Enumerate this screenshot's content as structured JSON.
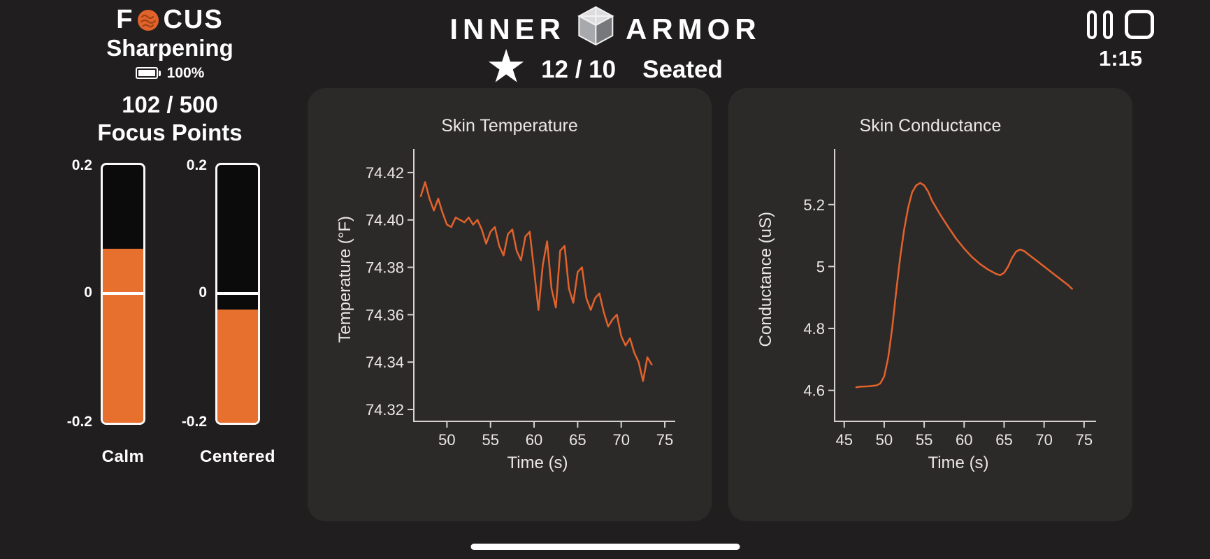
{
  "header": {
    "brand_left": {
      "prefix": "F",
      "suffix": "CUS",
      "subtitle": "Sharpening",
      "battery_percent": "100%"
    },
    "brand_center": {
      "word_left": "INNER",
      "word_right": "ARMOR"
    },
    "score_value": "12 / 10",
    "posture": "Seated",
    "timer": "1:15"
  },
  "focus": {
    "points": "102 / 500",
    "label": "Focus Points"
  },
  "gauges": {
    "scale_top": "0.2",
    "scale_mid": "0",
    "scale_bottom": "-0.2",
    "range": [
      -0.2,
      0.2
    ],
    "items": [
      {
        "label": "Calm",
        "value": 0.07
      },
      {
        "label": "Centered",
        "value": -0.025
      }
    ]
  },
  "icons": {
    "star_glyph": "★",
    "pause": "pause-icon",
    "stop": "stop-icon",
    "battery": "battery-icon",
    "brain": "brain-icon",
    "cube": "cube-logo-icon"
  },
  "colors": {
    "background": "#201e1e",
    "panel": "#2c2a29",
    "bar_orange": "#e8702e",
    "line_orange": "#e2622b",
    "text": "#ffffff",
    "chart_text": "#eae7e4"
  },
  "chart_data": [
    {
      "type": "line",
      "title": "Skin Temperature",
      "xlabel": "Time (s)",
      "ylabel": "Temperature (°F)",
      "xlim": [
        46.2,
        76.2
      ],
      "ylim": [
        74.315,
        74.43
      ],
      "xticks": [
        50,
        55,
        60,
        65,
        70,
        75
      ],
      "yticks": [
        74.32,
        74.34,
        74.36,
        74.38,
        74.4,
        74.42
      ],
      "ytick_labels": [
        "74.32",
        "74.34",
        "74.36",
        "74.38",
        "74.40",
        "74.42"
      ],
      "color": "#e2622b",
      "x": [
        47,
        47.5,
        48,
        48.5,
        49,
        49.5,
        50,
        50.5,
        51,
        51.5,
        52,
        52.5,
        53,
        53.5,
        54,
        54.5,
        55,
        55.5,
        56,
        56.5,
        57,
        57.5,
        58,
        58.5,
        59,
        59.5,
        60,
        60.5,
        61,
        61.5,
        62,
        62.5,
        63,
        63.5,
        64,
        64.5,
        65,
        65.5,
        66,
        66.5,
        67,
        67.5,
        68,
        68.5,
        69,
        69.5,
        70,
        70.5,
        71,
        71.5,
        72,
        72.5,
        73,
        73.5
      ],
      "y": [
        74.41,
        74.416,
        74.409,
        74.404,
        74.409,
        74.403,
        74.398,
        74.397,
        74.401,
        74.4,
        74.399,
        74.401,
        74.398,
        74.4,
        74.396,
        74.39,
        74.395,
        74.397,
        74.389,
        74.385,
        74.394,
        74.396,
        74.387,
        74.383,
        74.393,
        74.395,
        74.379,
        74.362,
        74.381,
        74.391,
        74.371,
        74.363,
        74.387,
        74.389,
        74.371,
        74.365,
        74.378,
        74.38,
        74.367,
        74.362,
        74.367,
        74.369,
        74.361,
        74.355,
        74.358,
        74.36,
        74.351,
        74.347,
        74.35,
        74.344,
        74.34,
        74.332,
        74.342,
        74.339
      ]
    },
    {
      "type": "line",
      "title": "Skin Conductance",
      "xlabel": "Time (s)",
      "ylabel": "Conductance (uS)",
      "xlim": [
        43.8,
        76.5
      ],
      "ylim": [
        4.5,
        5.38
      ],
      "xticks": [
        45,
        50,
        55,
        60,
        65,
        70,
        75
      ],
      "yticks": [
        4.6,
        4.8,
        5.0,
        5.2
      ],
      "ytick_labels": [
        "4.6",
        "4.8",
        "5",
        "5.2"
      ],
      "color": "#e2622b",
      "x": [
        46.5,
        47,
        48,
        49,
        49.5,
        50,
        50.5,
        51,
        51.5,
        52,
        52.5,
        53,
        53.5,
        54,
        54.5,
        55,
        55.5,
        56,
        57,
        58,
        59,
        60,
        61,
        62,
        63,
        64,
        64.5,
        65,
        65.5,
        66,
        66.5,
        67,
        67.5,
        68,
        69,
        70,
        71,
        72,
        73,
        73.5
      ],
      "y": [
        4.61,
        4.612,
        4.613,
        4.616,
        4.622,
        4.645,
        4.705,
        4.8,
        4.92,
        5.03,
        5.12,
        5.19,
        5.24,
        5.262,
        5.27,
        5.262,
        5.242,
        5.212,
        5.168,
        5.128,
        5.09,
        5.058,
        5.03,
        5.008,
        4.99,
        4.976,
        4.972,
        4.98,
        5.0,
        5.028,
        5.048,
        5.055,
        5.05,
        5.04,
        5.02,
        5.0,
        4.98,
        4.96,
        4.94,
        4.928
      ]
    }
  ]
}
